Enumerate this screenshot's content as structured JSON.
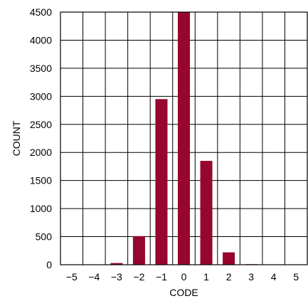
{
  "chart_data": {
    "type": "bar",
    "xlabel": "CODE",
    "ylabel": "COUNT",
    "x": [
      -5,
      -4,
      -3,
      -2,
      -1,
      0,
      1,
      2,
      3,
      4,
      5
    ],
    "x_tick_labels": [
      "−5",
      "−4",
      "−3",
      "−2",
      "−1",
      "0",
      "1",
      "2",
      "3",
      "4",
      "5"
    ],
    "values": [
      0,
      0,
      30,
      510,
      2950,
      4500,
      1850,
      220,
      10,
      5,
      0
    ],
    "y_ticks": [
      0,
      500,
      1000,
      1500,
      2000,
      2500,
      3000,
      3500,
      4000,
      4500
    ],
    "y_tick_labels": [
      "0",
      "500",
      "1000",
      "1500",
      "2000",
      "2500",
      "3000",
      "3500",
      "4000",
      "4500"
    ],
    "xlim": [
      -5.5,
      5.5
    ],
    "ylim": [
      0,
      4500
    ],
    "grid": true,
    "bar_color": "#96062e",
    "grid_color": "#000000"
  }
}
